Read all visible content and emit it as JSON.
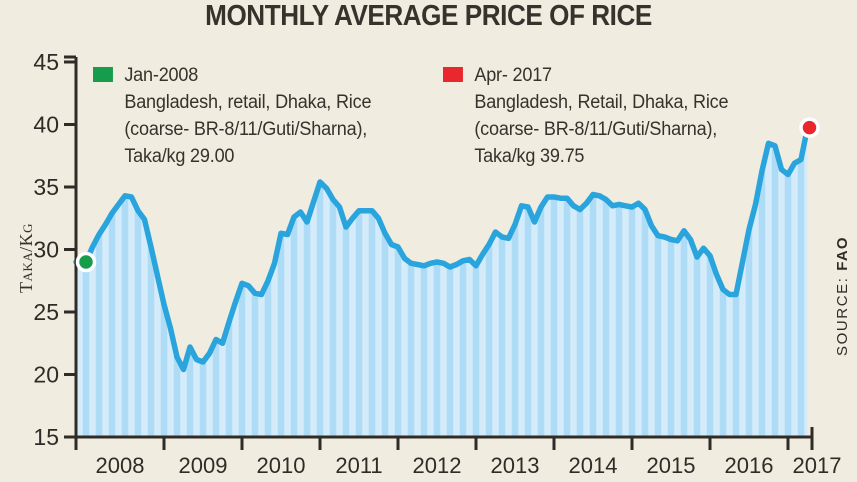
{
  "title": "MONTHLY AVERAGE PRICE OF RICE",
  "y_axis_title": "Taka/Kg",
  "source": {
    "label": "SOURCE: ",
    "value": "FAO"
  },
  "annotations": [
    {
      "label": "Jan-2008",
      "lines": [
        "Bangladesh, retail, Dhaka, Rice",
        "(coarse- BR-8/11/Guti/Sharna),",
        "Taka/kg 29.00"
      ],
      "marker_color": "#169c4a"
    },
    {
      "label": "Apr- 2017",
      "lines": [
        "Bangladesh, Retail, Dhaka, Rice",
        "(coarse- BR-8/11/Guti/Sharna),",
        "Taka/kg 39.75"
      ],
      "marker_color": "#e8282c"
    }
  ],
  "chart_data": {
    "type": "area",
    "title": "MONTHLY AVERAGE PRICE OF RICE",
    "ylabel": "Taka/Kg",
    "unit": "Taka/kg",
    "ylim": [
      15,
      45
    ],
    "y_ticks": [
      15,
      20,
      25,
      30,
      35,
      40,
      45
    ],
    "x_tick_years": [
      2008,
      2009,
      2010,
      2011,
      2012,
      2013,
      2014,
      2015,
      2016,
      2017
    ],
    "x_range": "Jan 2008 - Apr 2017 (monthly)",
    "start_marker": {
      "month": "Jan-2008",
      "value": 29.0,
      "color": "#169c4a"
    },
    "end_marker": {
      "month": "Apr-2017",
      "value": 39.75,
      "color": "#e8282c"
    },
    "series": [
      {
        "name": "Monthly average retail price of rice, Dhaka (Taka/kg)",
        "values": [
          29.0,
          30.2,
          31.2,
          32.0,
          32.9,
          33.6,
          34.3,
          34.2,
          33.1,
          32.4,
          30.2,
          27.9,
          25.6,
          23.7,
          21.4,
          20.4,
          22.2,
          21.2,
          21.0,
          21.7,
          22.8,
          22.5,
          24.2,
          25.8,
          27.3,
          27.1,
          26.5,
          26.4,
          27.5,
          28.9,
          31.3,
          31.2,
          32.6,
          33.0,
          32.2,
          33.8,
          35.4,
          34.9,
          34.0,
          33.4,
          31.8,
          32.5,
          33.1,
          33.1,
          33.1,
          32.5,
          31.3,
          30.4,
          30.2,
          29.3,
          28.9,
          28.8,
          28.7,
          28.9,
          29.0,
          28.9,
          28.6,
          28.8,
          29.1,
          29.2,
          28.7,
          29.6,
          30.4,
          31.4,
          31.0,
          30.9,
          32.0,
          33.5,
          33.4,
          32.2,
          33.4,
          34.2,
          34.2,
          34.1,
          34.1,
          33.5,
          33.2,
          33.7,
          34.4,
          34.3,
          34.0,
          33.5,
          33.6,
          33.5,
          33.4,
          33.7,
          33.2,
          31.9,
          31.1,
          31.0,
          30.8,
          30.7,
          31.5,
          30.8,
          29.4,
          30.1,
          29.5,
          28.0,
          26.8,
          26.4,
          26.4,
          29.0,
          31.6,
          33.6,
          36.3,
          38.5,
          38.3,
          36.4,
          36.0,
          36.9,
          37.2,
          39.75
        ]
      }
    ],
    "legend_position": "none",
    "grid": false,
    "colors": {
      "line": "#29a4dd",
      "stripe_light": "#d4ebfa",
      "stripe_dark": "#aedcf6",
      "axis": "#2f2c27",
      "background": "#f0ecdf"
    }
  }
}
